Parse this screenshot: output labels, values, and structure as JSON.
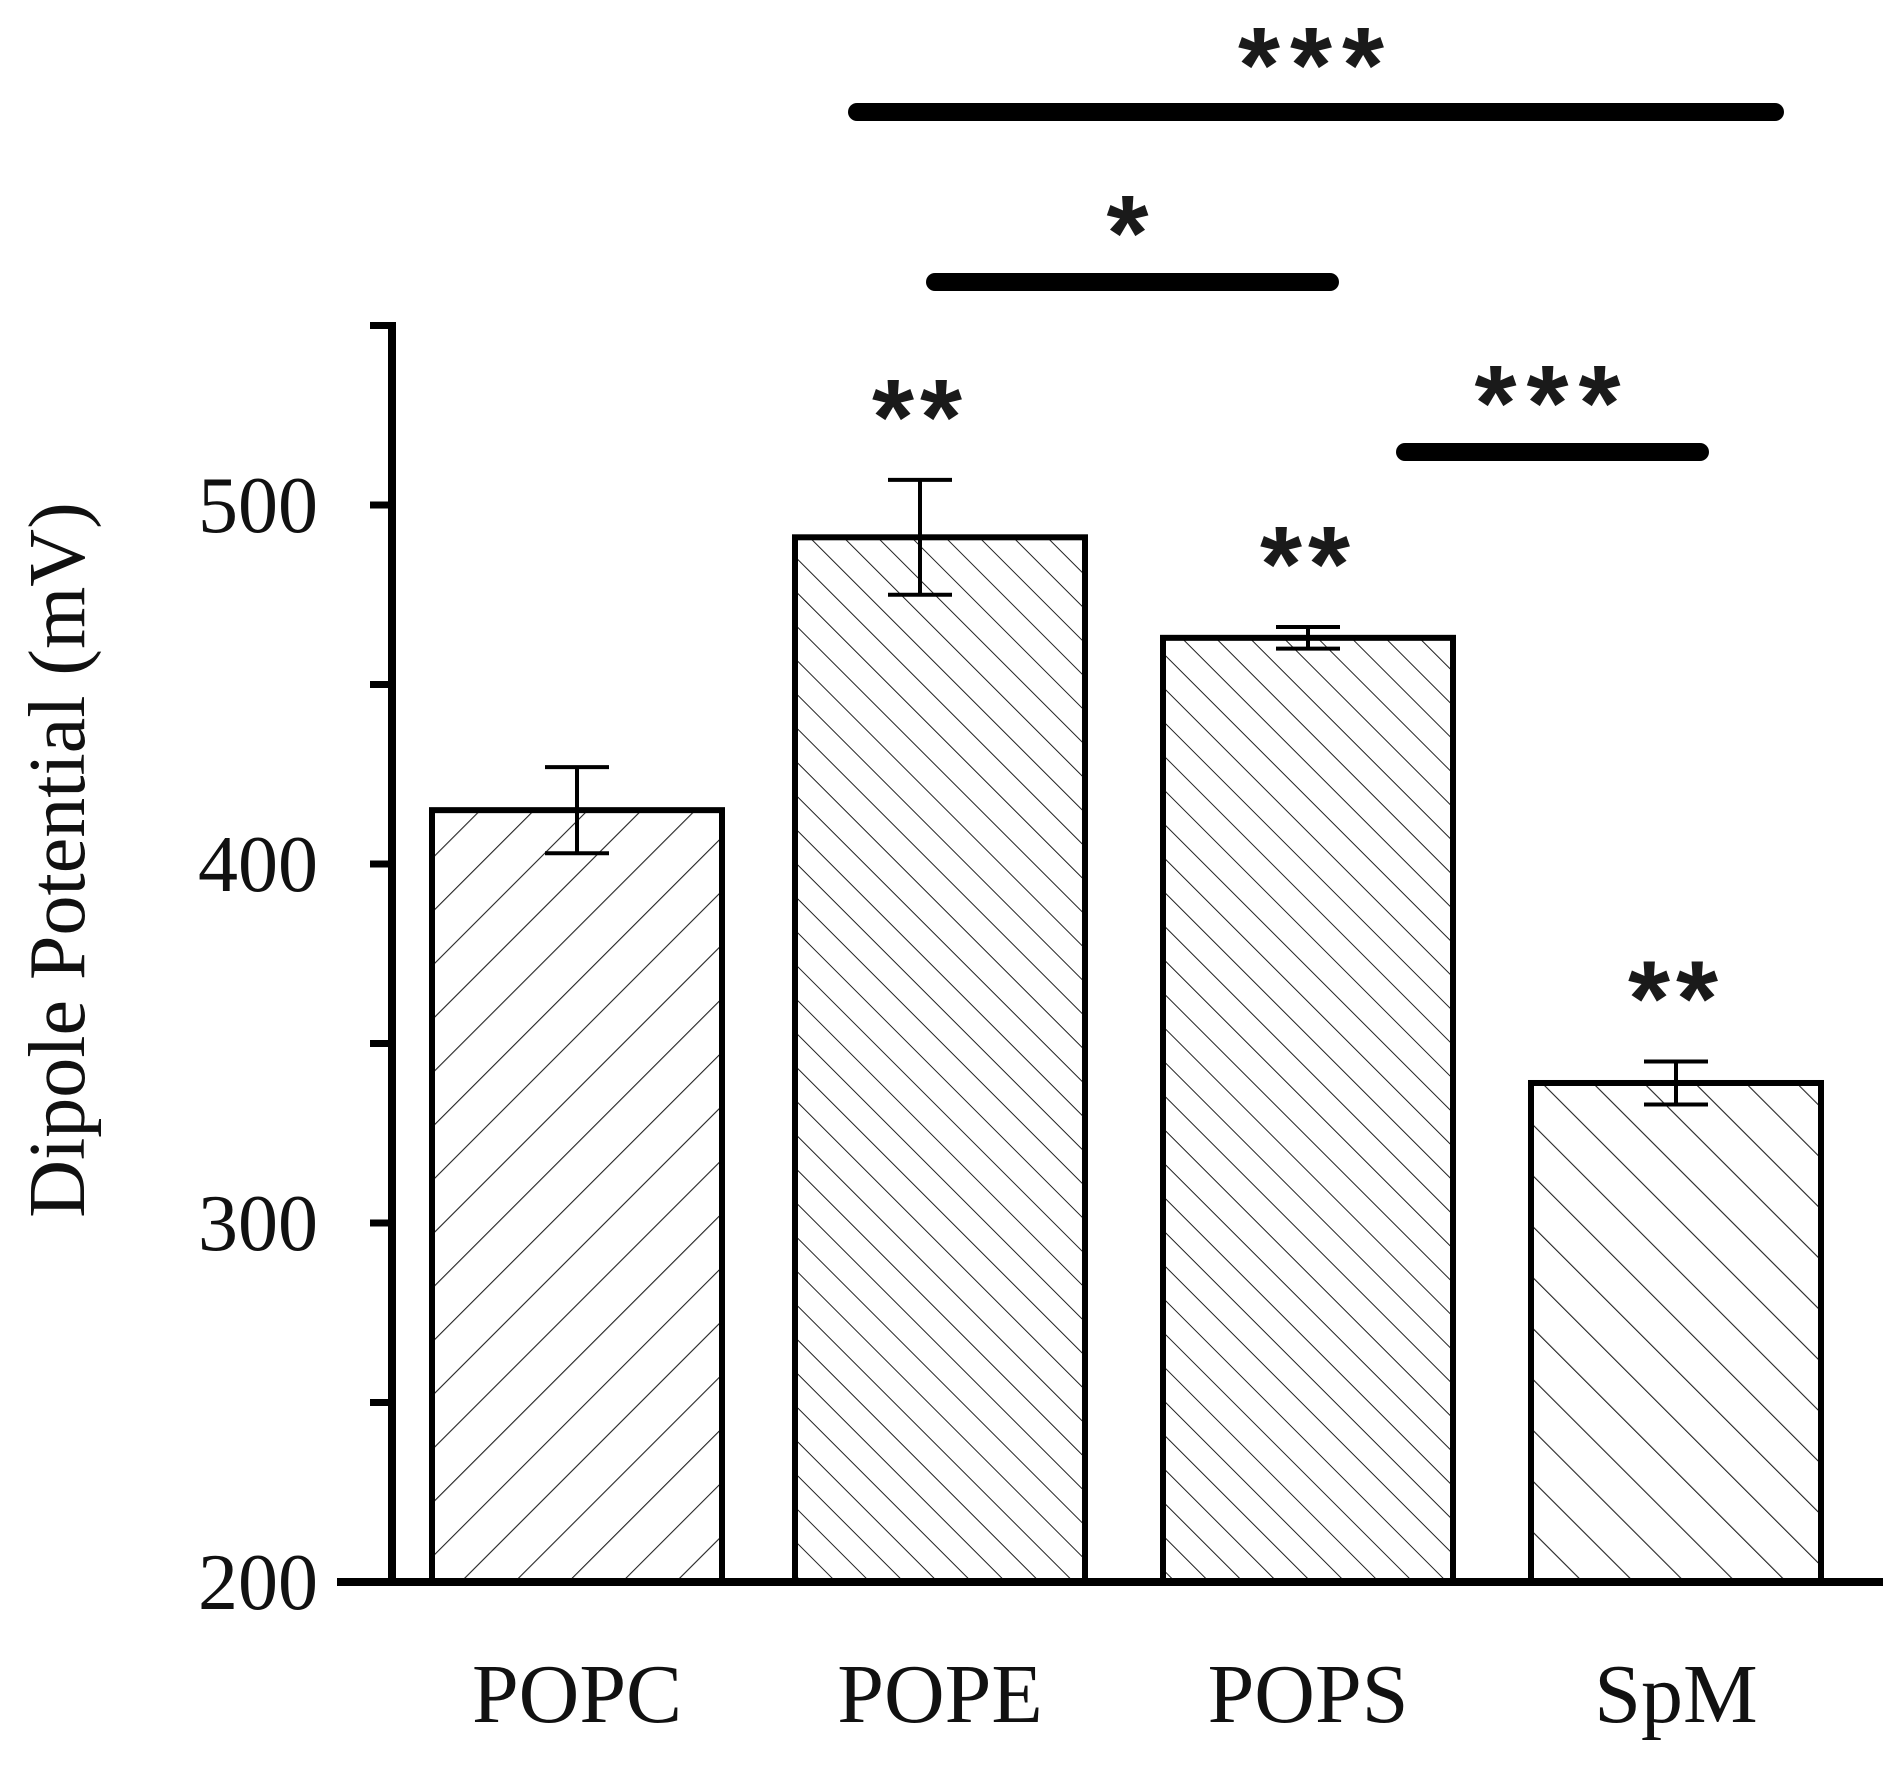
{
  "chart_data": {
    "type": "bar",
    "title": "",
    "xlabel": "",
    "ylabel": "Dipole Potential (mV)",
    "ylim": [
      200,
      550
    ],
    "yticks": [
      200,
      300,
      400,
      500
    ],
    "categories": [
      "POPC",
      "POPE",
      "POPS",
      "SpM"
    ],
    "values": [
      415,
      491,
      463,
      339
    ],
    "errors": [
      12,
      16,
      3,
      6
    ],
    "bar_marks": [
      "",
      "**",
      "**",
      "**"
    ],
    "hatch": [
      "sparse-forward",
      "dense-backward",
      "dense-backward",
      "sparse-backward"
    ],
    "significance": [
      {
        "from": "POPE",
        "to": "SpM",
        "label": "***"
      },
      {
        "from": "POPE",
        "to": "POPS",
        "label": "*"
      },
      {
        "from": "POPS",
        "to": "SpM",
        "label": "***"
      }
    ],
    "colors": {
      "bar_fill": "#ffffff",
      "stroke": "#000000"
    }
  }
}
